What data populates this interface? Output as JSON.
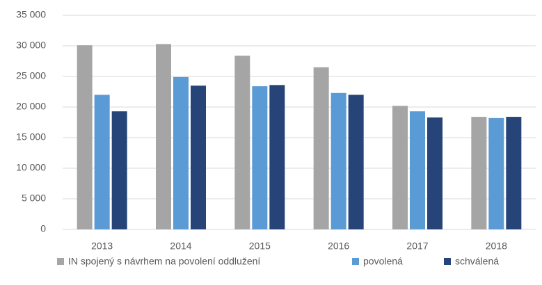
{
  "chart_data": {
    "type": "bar",
    "categories": [
      "2013",
      "2014",
      "2015",
      "2016",
      "2017",
      "2018"
    ],
    "series": [
      {
        "name": "IN spojený s návrhem na povolení oddlužení",
        "color": "#a5a5a5",
        "values": [
          30100,
          30300,
          28400,
          26500,
          20200,
          18400
        ]
      },
      {
        "name": "povolená",
        "color": "#5b9bd5",
        "values": [
          22000,
          24900,
          23400,
          22300,
          19300,
          18200
        ]
      },
      {
        "name": "schválená",
        "color": "#264478",
        "values": [
          19300,
          23500,
          23600,
          22000,
          18300,
          18400
        ]
      }
    ],
    "ylim": [
      0,
      35000
    ],
    "yticks": [
      0,
      {
        "value": 5000,
        "label": "5 000"
      },
      {
        "value": 10000,
        "label": "10 000"
      },
      {
        "value": 15000,
        "label": "15 000"
      },
      {
        "value": 20000,
        "label": "20 000"
      },
      {
        "value": 25000,
        "label": "25 000"
      },
      {
        "value": 30000,
        "label": "30 000"
      },
      {
        "value": 35000,
        "label": "35 000"
      }
    ],
    "grid": true,
    "legend": "bottom"
  }
}
